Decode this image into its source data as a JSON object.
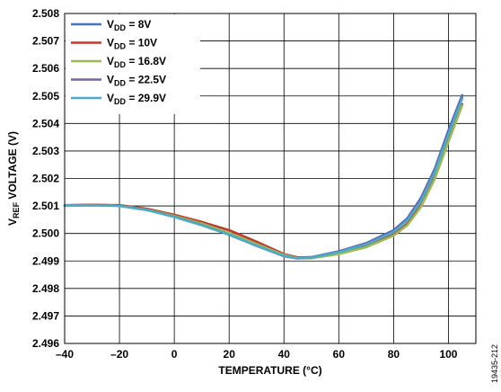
{
  "figure_id": "19435-212",
  "chart_data": {
    "type": "line",
    "xlabel": "TEMPERATURE (°C)",
    "ylabel": {
      "prefix": "V",
      "subscript": "REF",
      "suffix": " VOLTAGE (V)"
    },
    "xlim": [
      -40,
      110
    ],
    "ylim": [
      2.496,
      2.508
    ],
    "x_ticks": [
      -40,
      -20,
      0,
      20,
      40,
      60,
      80,
      100
    ],
    "x_tick_labels": [
      "–40",
      "–20",
      "0",
      "20",
      "40",
      "60",
      "80",
      "100"
    ],
    "y_ticks": [
      2.496,
      2.497,
      2.498,
      2.499,
      2.5,
      2.501,
      2.502,
      2.503,
      2.504,
      2.505,
      2.506,
      2.507,
      2.508
    ],
    "y_tick_labels": [
      "2.496",
      "2.497",
      "2.498",
      "2.499",
      "2.500",
      "2.501",
      "2.502",
      "2.503",
      "2.504",
      "2.505",
      "2.506",
      "2.507",
      "2.508"
    ],
    "grid": true,
    "legend": {
      "position": "top-left"
    },
    "series": [
      {
        "name": "8V",
        "color": "#4472c4",
        "x": [
          -40,
          -30,
          -20,
          -10,
          0,
          10,
          20,
          30,
          40,
          45,
          50,
          60,
          70,
          80,
          85,
          90,
          95,
          100,
          105
        ],
        "y": [
          2.50103,
          2.50104,
          2.50102,
          2.50088,
          2.50063,
          2.50033,
          2.49998,
          2.49958,
          2.4992,
          2.49912,
          2.49914,
          2.49935,
          2.49965,
          2.50012,
          2.50055,
          2.5013,
          2.50235,
          2.50375,
          2.50503
        ]
      },
      {
        "name": "10V",
        "color": "#c0392b",
        "x": [
          -40,
          -30,
          -20,
          -10,
          0,
          10,
          20,
          30,
          40,
          45,
          50,
          60,
          70,
          80,
          85,
          90,
          95,
          100,
          105
        ],
        "y": [
          2.50102,
          2.50104,
          2.50103,
          2.5009,
          2.50068,
          2.50042,
          2.50012,
          2.4997,
          2.49925,
          2.49913,
          2.49913,
          2.49929,
          2.49956,
          2.49995,
          2.50035,
          2.50103,
          2.50205,
          2.5034,
          2.5047
        ]
      },
      {
        "name": "16.8V",
        "color": "#9bbb59",
        "x": [
          -40,
          -30,
          -20,
          -10,
          0,
          10,
          20,
          30,
          40,
          45,
          50,
          60,
          70,
          80,
          85,
          90,
          95,
          100,
          105
        ],
        "y": [
          2.50102,
          2.50103,
          2.50101,
          2.50087,
          2.50064,
          2.50036,
          2.50002,
          2.49962,
          2.49922,
          2.4991,
          2.4991,
          2.49925,
          2.4995,
          2.49992,
          2.5003,
          2.50097,
          2.50198,
          2.50333,
          2.50465
        ]
      },
      {
        "name": "22.5V",
        "color": "#7f5fa6",
        "x": [
          -40,
          -30,
          -20,
          -10,
          0,
          10,
          20,
          30,
          40,
          45,
          50,
          60,
          70,
          80,
          85,
          90,
          95,
          100,
          105
        ],
        "y": [
          2.50101,
          2.50103,
          2.50101,
          2.50086,
          2.50061,
          2.50031,
          2.49995,
          2.49955,
          2.49917,
          2.49909,
          2.49912,
          2.49933,
          2.49962,
          2.50008,
          2.5005,
          2.50123,
          2.50227,
          2.50365,
          2.50495
        ]
      },
      {
        "name": "29.9V",
        "color": "#4bacc6",
        "x": [
          -40,
          -30,
          -20,
          -10,
          0,
          10,
          20,
          30,
          40,
          45,
          50,
          60,
          70,
          80,
          85,
          90,
          95,
          100,
          105
        ],
        "y": [
          2.50101,
          2.50102,
          2.501,
          2.50085,
          2.5006,
          2.5003,
          2.49996,
          2.49956,
          2.49918,
          2.4991,
          2.49912,
          2.49932,
          2.4996,
          2.50005,
          2.50047,
          2.50118,
          2.50222,
          2.5036,
          2.5049
        ]
      }
    ]
  }
}
